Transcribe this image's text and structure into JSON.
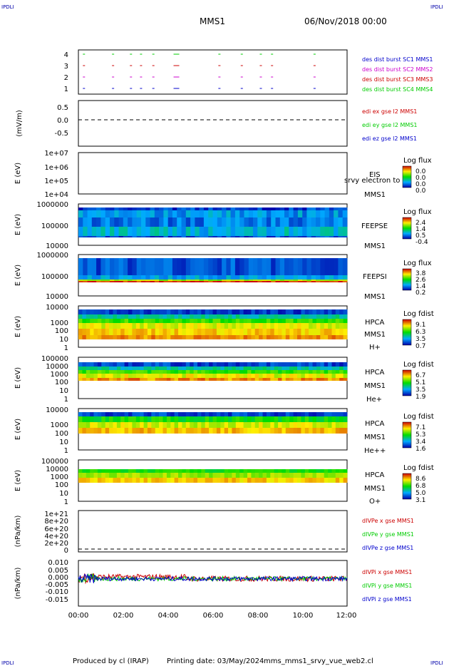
{
  "header": {
    "corner_tl": "IPDLI",
    "corner_tr": "IPDLI",
    "corner_bl": "IPDLI",
    "corner_br": "IPDLI",
    "spacecraft": "MMS1",
    "date": "06/Nov/2018 00:00"
  },
  "footer": {
    "produced": "Produced by cl (IRAP)",
    "printed": "Printing date: 03/May/2024",
    "script": "mms_mms1_srvy_vue_web2.cl"
  },
  "time_axis": [
    "00:00",
    "02:00",
    "04:00",
    "06:00",
    "08:00",
    "10:00",
    "12:00"
  ],
  "colors": {
    "blue": "#0000cc",
    "magenta": "#cc00cc",
    "red": "#cc0000",
    "green": "#00cc00"
  },
  "chart_data": [
    {
      "type": "scatter",
      "panel": "burst",
      "ylabel": "",
      "yticks": [
        "4",
        "3",
        "2",
        "1"
      ],
      "legend": [
        {
          "label": "des dist burst SC1 MMS1",
          "color": "#0000cc"
        },
        {
          "label": "des dist burst SC2 MMS2",
          "color": "#cc00cc"
        },
        {
          "label": "des dist burst SC3 MMS3",
          "color": "#cc0000"
        },
        {
          "label": "des dist burst SC4 MMS4",
          "color": "#00cc00"
        }
      ],
      "burst_hours": [
        0.2,
        1.5,
        2.3,
        2.75,
        3.3,
        4.25,
        6.25,
        7.25,
        8.1,
        8.6,
        10.5
      ]
    },
    {
      "type": "line",
      "panel": "edi",
      "ylabel": "(mV/m)",
      "yticks": [
        "0.5",
        "0.0",
        "-0.5"
      ],
      "ylim": [
        -0.8,
        0.8
      ],
      "legend": [
        {
          "label": "edi ex gse l2 MMS1",
          "color": "#cc0000"
        },
        {
          "label": "edi ey gse l2 MMS1",
          "color": "#00cc00"
        },
        {
          "label": "edi ez gse l2 MMS1",
          "color": "#0000cc"
        }
      ]
    },
    {
      "type": "heatmap",
      "panel": "eis",
      "ylabel": "E (eV)",
      "yticks": [
        "1e+07",
        "1e+06",
        "1e+05",
        "1e+04"
      ],
      "labels": [
        "EIS",
        "MMS1"
      ],
      "overlay": "srvy electron to",
      "colorbar": {
        "title": "Log flux",
        "ticks": [
          "0.0",
          "0.0",
          "0.0",
          "0.0"
        ]
      }
    },
    {
      "type": "heatmap",
      "panel": "feepse",
      "ylabel": "E (eV)",
      "yticks": [
        "1000000",
        "100000",
        "10000"
      ],
      "labels": [
        "FEEPSE",
        "MMS1"
      ],
      "colorbar": {
        "title": "Log flux",
        "ticks": [
          "2.4",
          "1.4",
          "0.5",
          "-0.4"
        ]
      }
    },
    {
      "type": "heatmap",
      "panel": "feepsi",
      "ylabel": "E (eV)",
      "yticks": [
        "1000000",
        "100000",
        "10000"
      ],
      "labels": [
        "FEEPSI",
        "MMS1"
      ],
      "colorbar": {
        "title": "Log flux",
        "ticks": [
          "3.8",
          "2.6",
          "1.4",
          "0.2"
        ]
      }
    },
    {
      "type": "heatmap",
      "panel": "hpca-h",
      "ylabel": "E (eV)",
      "yticks": [
        "10000",
        "1000",
        "100",
        "10",
        "1"
      ],
      "labels": [
        "HPCA",
        "MMS1",
        "H+"
      ],
      "colorbar": {
        "title": "Log fdist",
        "ticks": [
          "9.1",
          "6.3",
          "3.5",
          "0.7"
        ]
      }
    },
    {
      "type": "heatmap",
      "panel": "hpca-he",
      "ylabel": "E (eV)",
      "yticks": [
        "100000",
        "10000",
        "1000",
        "100",
        "10",
        "1"
      ],
      "labels": [
        "HPCA",
        "MMS1",
        "He+"
      ],
      "colorbar": {
        "title": "Log fdist",
        "ticks": [
          "6.7",
          "5.1",
          "3.5",
          "1.9"
        ]
      }
    },
    {
      "type": "heatmap",
      "panel": "hpca-hepp",
      "ylabel": "E (eV)",
      "yticks": [
        "10000",
        "1000",
        "100",
        "10",
        "1"
      ],
      "labels": [
        "HPCA",
        "MMS1",
        "He++"
      ],
      "colorbar": {
        "title": "Log fdist",
        "ticks": [
          "7.1",
          "5.3",
          "3.4",
          "1.6"
        ]
      }
    },
    {
      "type": "heatmap",
      "panel": "hpca-o",
      "ylabel": "E (eV)",
      "yticks": [
        "100000",
        "10000",
        "1000",
        "100",
        "10",
        "1"
      ],
      "labels": [
        "HPCA",
        "MMS1",
        "O+"
      ],
      "colorbar": {
        "title": "Log fdist",
        "ticks": [
          "8.6",
          "6.8",
          "5.0",
          "3.1"
        ]
      }
    },
    {
      "type": "line",
      "panel": "divpe",
      "ylabel": "(nPa/km)",
      "yticks": [
        "1e+21",
        "8e+20",
        "6e+20",
        "4e+20",
        "2e+20",
        "0"
      ],
      "legend": [
        {
          "label": "dIVPe x gse MMS1",
          "color": "#cc0000"
        },
        {
          "label": "dIVPe y gse MMS1",
          "color": "#00cc00"
        },
        {
          "label": "dIVPe z gse MMS1",
          "color": "#0000cc"
        }
      ]
    },
    {
      "type": "line",
      "panel": "divpi",
      "ylabel": "(nPa/km)",
      "yticks": [
        "0.010",
        "0.005",
        "0.000",
        "-0.005",
        "-0.010",
        "-0.015"
      ],
      "ylim": [
        -0.018,
        0.012
      ],
      "legend": [
        {
          "label": "dIVPi x gse MMS1",
          "color": "#cc0000"
        },
        {
          "label": "dIVPi y gse MMS1",
          "color": "#00cc00"
        },
        {
          "label": "dIVPi z gse MMS1",
          "color": "#0000cc"
        }
      ]
    }
  ]
}
